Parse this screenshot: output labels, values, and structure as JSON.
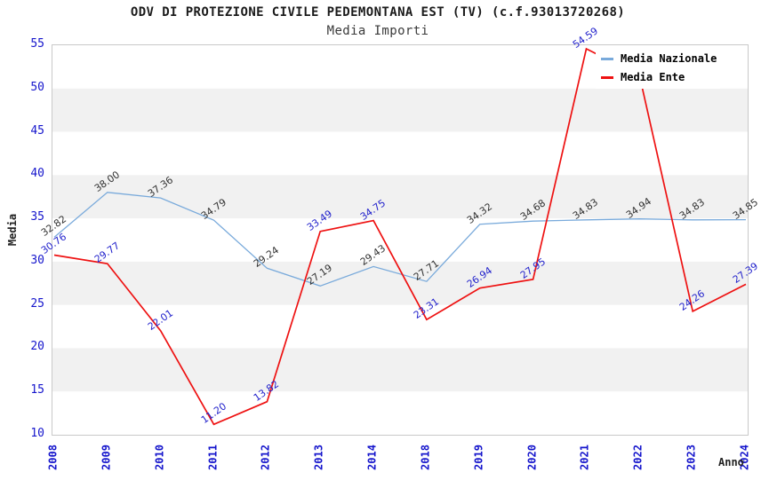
{
  "header": {
    "title": "ODV DI PROTEZIONE CIVILE PEDEMONTANA EST (TV) (c.f.93013720268)",
    "subtitle": "Media Importi"
  },
  "legend": {
    "items": [
      {
        "label": "Media Nazionale",
        "color": "#79aadb"
      },
      {
        "label": "Media Ente",
        "color": "#ee1111"
      }
    ]
  },
  "axes": {
    "y_label": "Media",
    "x_label": "Anno",
    "y_ticks": [
      55,
      50,
      45,
      40,
      35,
      30,
      25,
      20,
      15,
      10
    ],
    "tick_color": "#1515cc"
  },
  "chart_data": {
    "type": "line",
    "title": "ODV DI PROTEZIONE CIVILE PEDEMONTANA EST (TV) (c.f.93013720268)",
    "subtitle": "Media Importi",
    "x": [
      2008,
      2009,
      2010,
      2011,
      2012,
      2013,
      2014,
      2018,
      2019,
      2020,
      2021,
      2022,
      2023,
      2024
    ],
    "xlabel": "Anno",
    "ylabel": "Media",
    "ylim": [
      10,
      55
    ],
    "ytick_step": 5,
    "grid": "alternating horizontal gray bands every 5 units",
    "legend_position": "top-right",
    "series": [
      {
        "name": "Media Nazionale",
        "color": "#79aadb",
        "label_color": "#333333",
        "values": [
          32.82,
          38.0,
          37.36,
          34.79,
          29.24,
          27.19,
          29.43,
          27.71,
          34.32,
          34.68,
          34.83,
          34.94,
          34.83,
          34.85
        ],
        "labels": [
          "32.82",
          "38.00",
          "37.36",
          "34.79",
          "29.24",
          "27.19",
          "29.43",
          "27.71",
          "34.32",
          "34.68",
          "34.83",
          "34.94",
          "34.83",
          "34.85"
        ]
      },
      {
        "name": "Media Ente",
        "color": "#ee1111",
        "label_color": "#2323cc",
        "values": [
          30.76,
          29.77,
          22.01,
          11.2,
          13.82,
          33.49,
          34.75,
          23.31,
          26.94,
          27.95,
          54.59,
          51.5,
          24.26,
          27.39
        ],
        "labels": [
          "30.76",
          "29.77",
          "22.01",
          "11.20",
          "13.82",
          "33.49",
          "34.75",
          "23.31",
          "26.94",
          "27.95",
          "54.59",
          null,
          "24.26",
          "27.39"
        ],
        "note": "2022 value label hidden behind legend in source image; value estimated from line position (~51.5)"
      }
    ]
  }
}
